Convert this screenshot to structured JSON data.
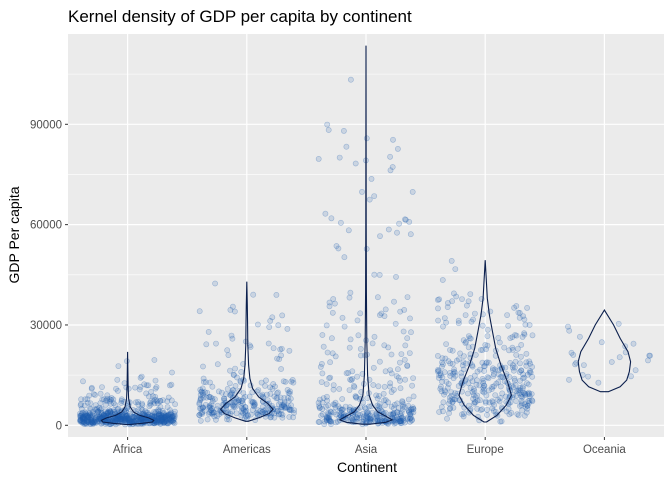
{
  "chart_data": {
    "type": "violin+jitter",
    "title": "Kernel density of GDP per capita by continent",
    "xlabel": "Continent",
    "ylabel": "GDP Per capita",
    "categories": [
      "Africa",
      "Americas",
      "Asia",
      "Europe",
      "Oceania"
    ],
    "y_ticks": [
      0,
      30000,
      60000,
      90000
    ],
    "y_tick_labels": [
      "0",
      "30000",
      "60000",
      "90000"
    ],
    "ylim": [
      -3500,
      117000
    ],
    "grid": true,
    "legend": "none",
    "colors": {
      "panel": "#ebebeb",
      "grid": "#ffffff",
      "points": "#1f5fb0",
      "violin": "#0b1f4d"
    },
    "series": [
      {
        "continent": "Africa",
        "violin_max": 21951,
        "violin_profile": [
          [
            241,
            0.08
          ],
          [
            600,
            0.55
          ],
          [
            1000,
            0.95
          ],
          [
            1500,
            1.0
          ],
          [
            2200,
            0.8
          ],
          [
            3000,
            0.45
          ],
          [
            4000,
            0.22
          ],
          [
            5500,
            0.1
          ],
          [
            8000,
            0.04
          ],
          [
            12000,
            0.02
          ],
          [
            16000,
            0.01
          ],
          [
            21951,
            0.0
          ]
        ],
        "n_points": 624
      },
      {
        "continent": "Americas",
        "violin_max": 42952,
        "violin_profile": [
          [
            1201,
            0.05
          ],
          [
            2200,
            0.45
          ],
          [
            3500,
            0.85
          ],
          [
            4800,
            1.0
          ],
          [
            6500,
            0.8
          ],
          [
            8500,
            0.45
          ],
          [
            11000,
            0.22
          ],
          [
            14000,
            0.12
          ],
          [
            18000,
            0.07
          ],
          [
            24000,
            0.04
          ],
          [
            30000,
            0.03
          ],
          [
            36000,
            0.02
          ],
          [
            42952,
            0.0
          ]
        ],
        "n_points": 300
      },
      {
        "continent": "Asia",
        "violin_max": 113523,
        "violin_profile": [
          [
            331,
            0.15
          ],
          [
            900,
            0.75
          ],
          [
            1600,
            1.0
          ],
          [
            2500,
            0.8
          ],
          [
            4000,
            0.45
          ],
          [
            6000,
            0.25
          ],
          [
            9000,
            0.12
          ],
          [
            15000,
            0.06
          ],
          [
            25000,
            0.03
          ],
          [
            40000,
            0.015
          ],
          [
            60000,
            0.008
          ],
          [
            90000,
            0.005
          ],
          [
            113523,
            0.0
          ]
        ],
        "n_points": 396
      },
      {
        "continent": "Europe",
        "violin_max": 49357,
        "violin_profile": [
          [
            974,
            0.05
          ],
          [
            3000,
            0.45
          ],
          [
            6000,
            0.8
          ],
          [
            9000,
            1.0
          ],
          [
            13000,
            0.85
          ],
          [
            18000,
            0.6
          ],
          [
            23000,
            0.4
          ],
          [
            28000,
            0.28
          ],
          [
            33000,
            0.16
          ],
          [
            38000,
            0.08
          ],
          [
            44000,
            0.04
          ],
          [
            49357,
            0.0
          ]
        ],
        "n_points": 360
      },
      {
        "continent": "Oceania",
        "violin_max": 34435,
        "violin_profile": [
          [
            10040,
            0.15
          ],
          [
            11500,
            0.6
          ],
          [
            13500,
            0.85
          ],
          [
            16000,
            0.95
          ],
          [
            19000,
            1.0
          ],
          [
            22000,
            0.9
          ],
          [
            26000,
            0.6
          ],
          [
            30000,
            0.35
          ],
          [
            34435,
            0.0
          ]
        ],
        "n_points": 24
      }
    ]
  }
}
